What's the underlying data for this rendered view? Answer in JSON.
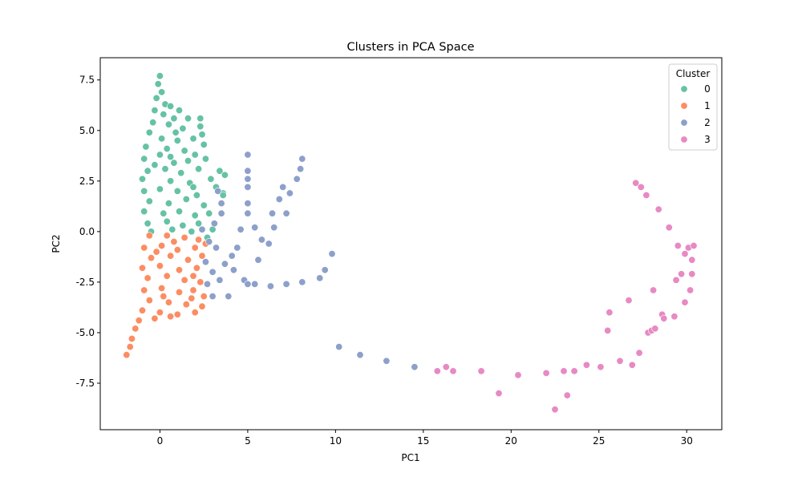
{
  "chart_data": {
    "type": "scatter",
    "title": "Clusters in PCA Space",
    "xlabel": "PC1",
    "ylabel": "PC2",
    "xlim": [
      -3.4,
      32.0
    ],
    "ylim": [
      -9.8,
      8.6
    ],
    "xticks": [
      0,
      5,
      10,
      15,
      20,
      25,
      30
    ],
    "yticks": [
      -7.5,
      -5.0,
      -2.5,
      0.0,
      2.5,
      5.0,
      7.5
    ],
    "grid": false,
    "legend": {
      "title": "Cluster",
      "placement": "top-right",
      "entries": [
        {
          "label": "0",
          "color": "#66c2a5"
        },
        {
          "label": "1",
          "color": "#fc8d62"
        },
        {
          "label": "2",
          "color": "#8da0cb"
        },
        {
          "label": "3",
          "color": "#e78ac3"
        }
      ]
    },
    "series": [
      {
        "name": "0",
        "color": "#66c2a5",
        "points": [
          [
            0.0,
            7.7
          ],
          [
            -0.1,
            7.3
          ],
          [
            0.1,
            6.9
          ],
          [
            -0.2,
            6.6
          ],
          [
            0.3,
            6.3
          ],
          [
            0.6,
            6.2
          ],
          [
            -0.3,
            6.0
          ],
          [
            0.2,
            5.8
          ],
          [
            1.1,
            6.0
          ],
          [
            0.8,
            5.6
          ],
          [
            1.6,
            5.6
          ],
          [
            2.3,
            5.6
          ],
          [
            -0.4,
            5.4
          ],
          [
            0.5,
            5.3
          ],
          [
            1.3,
            5.1
          ],
          [
            2.3,
            5.2
          ],
          [
            2.4,
            4.8
          ],
          [
            1.9,
            4.6
          ],
          [
            -0.6,
            4.9
          ],
          [
            0.1,
            4.6
          ],
          [
            1.0,
            4.5
          ],
          [
            -0.8,
            4.2
          ],
          [
            0.4,
            4.1
          ],
          [
            1.4,
            4.0
          ],
          [
            2.5,
            4.3
          ],
          [
            2.0,
            3.8
          ],
          [
            -0.9,
            3.6
          ],
          [
            0.0,
            3.8
          ],
          [
            0.8,
            3.4
          ],
          [
            1.6,
            3.5
          ],
          [
            2.6,
            3.6
          ],
          [
            -0.7,
            3.0
          ],
          [
            0.3,
            3.1
          ],
          [
            1.2,
            2.9
          ],
          [
            2.2,
            3.1
          ],
          [
            3.4,
            3.0
          ],
          [
            3.7,
            2.8
          ],
          [
            -1.0,
            2.6
          ],
          [
            0.6,
            2.5
          ],
          [
            1.7,
            2.4
          ],
          [
            2.9,
            2.6
          ],
          [
            3.2,
            2.2
          ],
          [
            -0.9,
            2.0
          ],
          [
            0.0,
            2.1
          ],
          [
            1.0,
            2.0
          ],
          [
            2.1,
            1.8
          ],
          [
            3.6,
            1.9
          ],
          [
            -0.6,
            1.5
          ],
          [
            0.5,
            1.4
          ],
          [
            1.5,
            1.6
          ],
          [
            2.5,
            1.3
          ],
          [
            3.6,
            1.8
          ],
          [
            -0.9,
            1.0
          ],
          [
            0.2,
            0.9
          ],
          [
            1.1,
            1.0
          ],
          [
            2.0,
            0.8
          ],
          [
            2.8,
            0.9
          ],
          [
            -0.7,
            0.4
          ],
          [
            0.4,
            0.5
          ],
          [
            1.3,
            0.3
          ],
          [
            2.2,
            0.4
          ],
          [
            3.0,
            0.1
          ],
          [
            -0.5,
            0.0
          ],
          [
            0.7,
            0.1
          ],
          [
            1.8,
            0.0
          ],
          [
            2.7,
            -0.3
          ],
          [
            -0.3,
            3.3
          ],
          [
            0.9,
            4.9
          ],
          [
            0.6,
            3.7
          ],
          [
            1.9,
            2.2
          ]
        ]
      },
      {
        "name": "1",
        "color": "#fc8d62",
        "points": [
          [
            -0.6,
            -0.2
          ],
          [
            0.4,
            -0.2
          ],
          [
            1.4,
            -0.3
          ],
          [
            2.2,
            -0.4
          ],
          [
            -0.9,
            -0.8
          ],
          [
            0.1,
            -0.7
          ],
          [
            1.0,
            -0.9
          ],
          [
            2.0,
            -0.8
          ],
          [
            2.6,
            -0.6
          ],
          [
            -0.5,
            -1.3
          ],
          [
            0.6,
            -1.2
          ],
          [
            1.6,
            -1.4
          ],
          [
            2.4,
            -1.2
          ],
          [
            -1.0,
            -1.8
          ],
          [
            0.0,
            -1.7
          ],
          [
            1.1,
            -1.9
          ],
          [
            2.1,
            -1.8
          ],
          [
            -0.7,
            -2.3
          ],
          [
            0.4,
            -2.2
          ],
          [
            1.4,
            -2.4
          ],
          [
            2.3,
            -2.5
          ],
          [
            -0.9,
            -2.9
          ],
          [
            0.1,
            -2.8
          ],
          [
            1.1,
            -3.0
          ],
          [
            1.9,
            -2.9
          ],
          [
            2.5,
            -3.2
          ],
          [
            -0.6,
            -3.4
          ],
          [
            0.5,
            -3.5
          ],
          [
            1.5,
            -3.6
          ],
          [
            2.4,
            -3.7
          ],
          [
            -1.0,
            -3.9
          ],
          [
            0.0,
            -4.0
          ],
          [
            1.0,
            -4.1
          ],
          [
            2.0,
            -4.0
          ],
          [
            -0.3,
            -4.3
          ],
          [
            0.6,
            -4.2
          ],
          [
            1.8,
            -3.3
          ],
          [
            -1.2,
            -4.4
          ],
          [
            -1.4,
            -4.8
          ],
          [
            -1.6,
            -5.3
          ],
          [
            -1.7,
            -5.7
          ],
          [
            -1.9,
            -6.1
          ],
          [
            0.8,
            -0.5
          ],
          [
            1.9,
            -2.2
          ],
          [
            0.2,
            -3.2
          ],
          [
            -0.2,
            -1.0
          ]
        ]
      },
      {
        "name": "2",
        "color": "#8da0cb",
        "points": [
          [
            2.4,
            0.1
          ],
          [
            2.8,
            -0.5
          ],
          [
            3.1,
            0.4
          ],
          [
            3.5,
            0.9
          ],
          [
            3.3,
            2.0
          ],
          [
            3.5,
            1.4
          ],
          [
            3.2,
            -0.8
          ],
          [
            2.6,
            -1.5
          ],
          [
            3.0,
            -2.0
          ],
          [
            2.7,
            -2.6
          ],
          [
            3.4,
            -2.4
          ],
          [
            3.0,
            -3.2
          ],
          [
            3.9,
            -3.2
          ],
          [
            3.7,
            -1.6
          ],
          [
            4.4,
            -0.8
          ],
          [
            4.6,
            0.1
          ],
          [
            4.8,
            -2.4
          ],
          [
            5.0,
            -2.6
          ],
          [
            5.4,
            -2.6
          ],
          [
            4.2,
            -1.9
          ],
          [
            5.0,
            3.8
          ],
          [
            5.0,
            3.0
          ],
          [
            5.0,
            2.6
          ],
          [
            5.0,
            2.2
          ],
          [
            5.0,
            1.4
          ],
          [
            5.0,
            0.9
          ],
          [
            5.4,
            0.2
          ],
          [
            5.8,
            -0.4
          ],
          [
            5.6,
            -1.4
          ],
          [
            6.2,
            -0.6
          ],
          [
            6.5,
            0.2
          ],
          [
            6.4,
            0.9
          ],
          [
            6.8,
            1.6
          ],
          [
            7.0,
            2.2
          ],
          [
            7.2,
            0.9
          ],
          [
            7.4,
            1.9
          ],
          [
            7.8,
            2.6
          ],
          [
            8.0,
            3.1
          ],
          [
            8.1,
            3.6
          ],
          [
            6.3,
            -2.7
          ],
          [
            7.2,
            -2.6
          ],
          [
            8.1,
            -2.5
          ],
          [
            9.1,
            -2.3
          ],
          [
            9.4,
            -1.9
          ],
          [
            9.8,
            -1.1
          ],
          [
            10.2,
            -5.7
          ],
          [
            11.4,
            -6.1
          ],
          [
            12.9,
            -6.4
          ],
          [
            14.5,
            -6.7
          ],
          [
            4.1,
            -1.2
          ]
        ]
      },
      {
        "name": "3",
        "color": "#e78ac3",
        "points": [
          [
            15.8,
            -6.9
          ],
          [
            16.3,
            -6.7
          ],
          [
            16.7,
            -6.9
          ],
          [
            18.3,
            -6.9
          ],
          [
            19.3,
            -8.0
          ],
          [
            20.4,
            -7.1
          ],
          [
            22.0,
            -7.0
          ],
          [
            22.5,
            -8.8
          ],
          [
            23.0,
            -6.9
          ],
          [
            23.2,
            -8.1
          ],
          [
            23.6,
            -6.9
          ],
          [
            24.3,
            -6.6
          ],
          [
            25.1,
            -6.7
          ],
          [
            25.5,
            -4.9
          ],
          [
            25.6,
            -4.0
          ],
          [
            26.2,
            -6.4
          ],
          [
            26.7,
            -3.4
          ],
          [
            26.9,
            -6.6
          ],
          [
            27.1,
            2.4
          ],
          [
            27.4,
            2.2
          ],
          [
            27.3,
            -6.0
          ],
          [
            27.7,
            1.8
          ],
          [
            27.8,
            -5.0
          ],
          [
            28.0,
            -4.9
          ],
          [
            28.2,
            -4.8
          ],
          [
            28.1,
            -2.9
          ],
          [
            28.4,
            1.1
          ],
          [
            28.6,
            -4.1
          ],
          [
            28.7,
            -4.3
          ],
          [
            29.0,
            0.2
          ],
          [
            29.3,
            -4.2
          ],
          [
            29.5,
            -0.7
          ],
          [
            29.4,
            -2.4
          ],
          [
            29.7,
            -2.1
          ],
          [
            29.9,
            -1.1
          ],
          [
            30.1,
            -0.8
          ],
          [
            29.9,
            -3.5
          ],
          [
            30.2,
            -2.9
          ],
          [
            30.3,
            -1.4
          ],
          [
            30.4,
            -0.7
          ],
          [
            30.3,
            -2.1
          ]
        ]
      }
    ]
  }
}
